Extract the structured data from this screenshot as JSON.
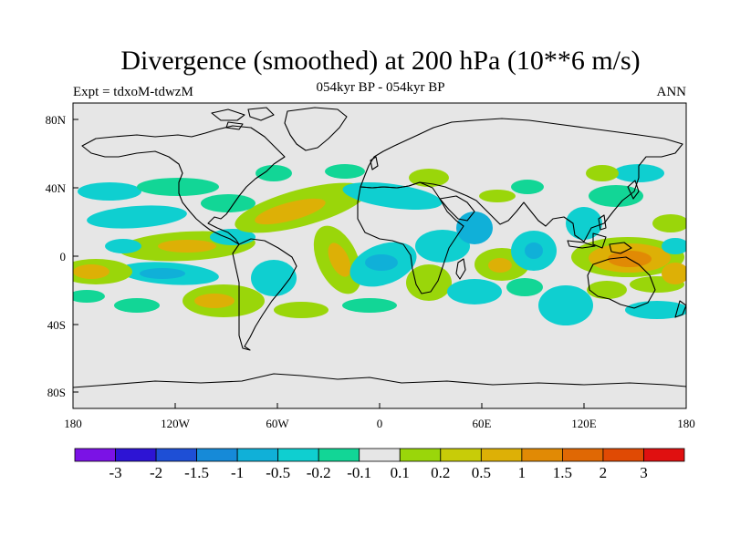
{
  "header": {
    "title": "Divergence (smoothed) at 200 hPa (10**6 m/s)",
    "subtitle": "054kyr BP - 054kyr BP",
    "left_label": "Expt = tdxoM-tdwzM",
    "right_label": "ANN"
  },
  "axes": {
    "lat_ticks": [
      "80N",
      "40N",
      "0",
      "40S",
      "80S"
    ],
    "lon_ticks": [
      "180",
      "120W",
      "60W",
      "0",
      "60E",
      "120E",
      "180"
    ]
  },
  "colors": {
    "background": "#e6e6e6",
    "coast": "#000000"
  },
  "colorbar": {
    "colors": [
      "#7b12e6",
      "#2d14d4",
      "#1e4fd6",
      "#168ad8",
      "#10b0d8",
      "#0fcfd0",
      "#12d696",
      "#e6e6e6",
      "#9ad60a",
      "#c8cc08",
      "#ddb006",
      "#e18a05",
      "#e06804",
      "#e04a04",
      "#e01010"
    ],
    "labels": [
      "-3",
      "-2",
      "-1.5",
      "-1",
      "-0.5",
      "-0.2",
      "-0.1",
      "0.1",
      "0.2",
      "0.5",
      "1",
      "1.5",
      "2",
      "3"
    ]
  }
}
